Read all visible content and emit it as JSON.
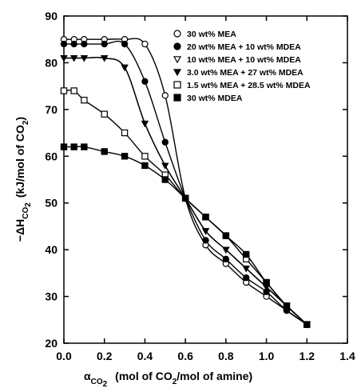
{
  "chart_data": {
    "type": "line",
    "xlabel": {
      "symbol": "α",
      "symbol_sub": "CO",
      "symbol_sub2": "2",
      "rest": "(mol of CO",
      "rest_sub": "2",
      "rest_end": "/mol of amine)"
    },
    "ylabel": {
      "prefix": "−ΔH",
      "prefix_sub": "CO",
      "prefix_sub2": "2",
      "rest": "(kJ/mol of CO",
      "rest_sub": "2",
      "rest_end": ")"
    },
    "xlim": [
      0.0,
      1.4
    ],
    "ylim": [
      20,
      90
    ],
    "x_ticks": [
      "0.0",
      "0.2",
      "0.4",
      "0.6",
      "0.8",
      "1.0",
      "1.2",
      "1.4"
    ],
    "y_ticks": [
      "20",
      "30",
      "40",
      "50",
      "60",
      "70",
      "80",
      "90"
    ],
    "grid": false,
    "legend_position": "top-right",
    "series": [
      {
        "name": "30 wt% MEA",
        "marker": "circle-open",
        "x": [
          0.0,
          0.05,
          0.1,
          0.2,
          0.3,
          0.4,
          0.5,
          0.6,
          0.7,
          0.8,
          0.9,
          1.0,
          1.1,
          1.2
        ],
        "y": [
          85,
          85,
          85,
          85,
          85,
          84,
          73,
          51,
          41,
          37,
          33,
          30,
          27,
          24
        ]
      },
      {
        "name": "20 wt% MEA + 10 wt% MDEA",
        "marker": "circle-filled",
        "x": [
          0.0,
          0.05,
          0.1,
          0.2,
          0.3,
          0.4,
          0.5,
          0.6,
          0.7,
          0.8,
          0.9,
          1.0,
          1.1,
          1.2
        ],
        "y": [
          84,
          84,
          84,
          84,
          84,
          76,
          63,
          51,
          42,
          38,
          34,
          31,
          27,
          24
        ]
      },
      {
        "name": "10 wt% MEA + 10 wt% MDEA",
        "marker": "triangle-down-open",
        "x": [
          0.0,
          0.05,
          0.1,
          0.2,
          0.3,
          0.4,
          0.5,
          0.6,
          0.7,
          0.8,
          0.9,
          1.0,
          1.1,
          1.2
        ],
        "y": [
          81,
          81,
          81,
          81,
          79,
          67,
          58,
          51,
          44,
          40,
          36,
          32,
          28,
          24
        ]
      },
      {
        "name": "3.0 wt% MEA + 27 wt% MDEA",
        "marker": "triangle-down-filled",
        "x": [
          0.0,
          0.05,
          0.1,
          0.2,
          0.3,
          0.4,
          0.5,
          0.6,
          0.7,
          0.8,
          0.9,
          1.0,
          1.1,
          1.2
        ],
        "y": [
          81,
          81,
          81,
          81,
          79,
          67,
          58,
          51,
          44,
          40,
          36,
          32,
          28,
          24
        ]
      },
      {
        "name": "1.5 wt% MEA + 28.5 wt% MDEA",
        "marker": "square-open",
        "x": [
          0.0,
          0.05,
          0.1,
          0.2,
          0.3,
          0.4,
          0.5,
          0.6,
          0.7,
          0.8,
          0.9,
          1.0,
          1.1,
          1.2
        ],
        "y": [
          74,
          74,
          72,
          69,
          65,
          60,
          56,
          51,
          47,
          43,
          38,
          33,
          28,
          24
        ]
      },
      {
        "name": "30 wt% MDEA",
        "marker": "square-filled",
        "x": [
          0.0,
          0.05,
          0.1,
          0.2,
          0.3,
          0.4,
          0.5,
          0.6,
          0.7,
          0.8,
          0.9,
          1.0,
          1.1,
          1.2
        ],
        "y": [
          62,
          62,
          62,
          61,
          60,
          58,
          55,
          51,
          47,
          43,
          39,
          33,
          28,
          24
        ]
      }
    ]
  }
}
